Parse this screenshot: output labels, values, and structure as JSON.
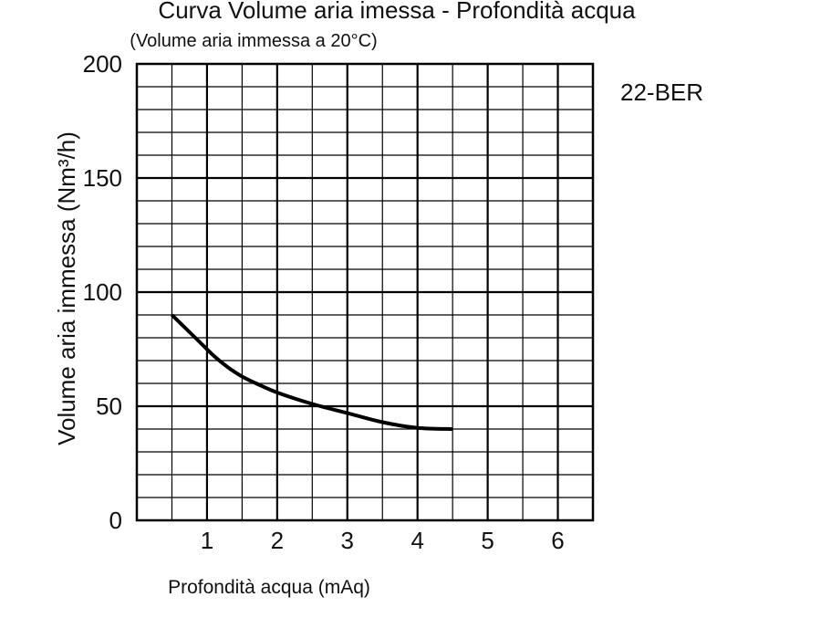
{
  "chart_data": {
    "type": "line",
    "title": "Curva Volume aria imessa - Profondità acqua",
    "subtitle": "(Volume aria immessa a 20°C)",
    "model": "22-BER",
    "xlabel": "Profondità acqua (mAq)",
    "ylabel": "Volume aria immessa (Nm³/h)",
    "xlim": [
      0,
      6.5
    ],
    "ylim": [
      0,
      200
    ],
    "x_ticks": [
      "1",
      "2",
      "3",
      "4",
      "5",
      "6"
    ],
    "y_ticks": [
      "0",
      "50",
      "100",
      "150",
      "200"
    ],
    "grid": true,
    "series": [
      {
        "x": [
          0.5,
          0.7,
          0.9,
          1.1,
          1.3,
          1.5,
          1.7,
          2.0,
          2.5,
          3.0,
          3.5,
          4.0,
          4.5
        ],
        "y": [
          90,
          84,
          78,
          72,
          67,
          63,
          60,
          56,
          51,
          47,
          43,
          40.5,
          40
        ]
      }
    ]
  }
}
